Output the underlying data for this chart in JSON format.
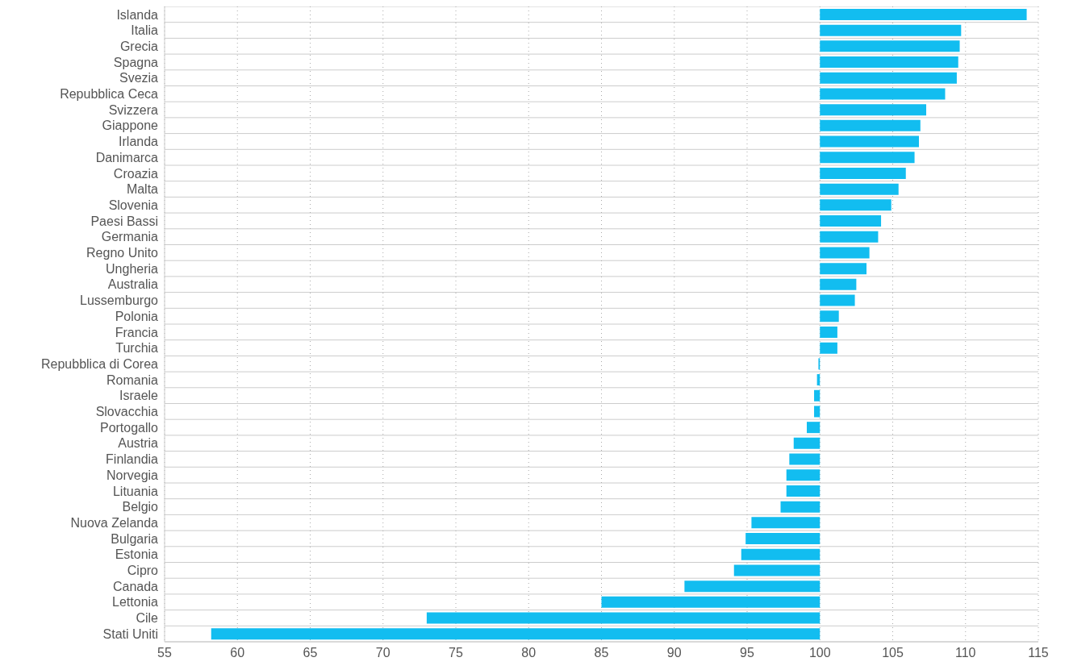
{
  "chart_data": {
    "type": "bar",
    "orientation": "horizontal",
    "categories": [
      "Islanda",
      "Italia",
      "Grecia",
      "Spagna",
      "Svezia",
      "Repubblica Ceca",
      "Svizzera",
      "Giappone",
      "Irlanda",
      "Danimarca",
      "Croazia",
      "Malta",
      "Slovenia",
      "Paesi Bassi",
      "Germania",
      "Regno Unito",
      "Ungheria",
      "Australia",
      "Lussemburgo",
      "Polonia",
      "Francia",
      "Turchia",
      "Repubblica di Corea",
      "Romania",
      "Israele",
      "Slovacchia",
      "Portogallo",
      "Austria",
      "Finlandia",
      "Norvegia",
      "Lituania",
      "Belgio",
      "Nuova Zelanda",
      "Bulgaria",
      "Estonia",
      "Cipro",
      "Canada",
      "Lettonia",
      "Cile",
      "Stati Uniti"
    ],
    "base": [
      100,
      100,
      100,
      100,
      100,
      100,
      100,
      100,
      100,
      100,
      100,
      100,
      100,
      100,
      100,
      100,
      100,
      100,
      100,
      100,
      100,
      100,
      100,
      100,
      100,
      100,
      100,
      100,
      100,
      100,
      100,
      100,
      100,
      100,
      100,
      100,
      100,
      100,
      100,
      100
    ],
    "values": [
      14.2,
      9.7,
      9.6,
      9.5,
      9.4,
      8.6,
      7.3,
      6.9,
      6.8,
      6.5,
      5.9,
      5.4,
      4.9,
      4.2,
      4.0,
      3.4,
      3.2,
      2.5,
      2.4,
      1.3,
      1.2,
      1.2,
      -0.1,
      -0.2,
      -0.4,
      -0.4,
      -0.9,
      -1.8,
      -2.1,
      -2.3,
      -2.3,
      -2.7,
      -4.7,
      -5.1,
      -5.4,
      -5.9,
      -9.3,
      -15.0,
      -27.0,
      -41.8
    ],
    "color": "#12bdf0",
    "xlim": [
      55,
      115
    ],
    "xticks": [
      55,
      60,
      65,
      70,
      75,
      80,
      85,
      90,
      95,
      100,
      105,
      110,
      115
    ],
    "grid": true
  }
}
